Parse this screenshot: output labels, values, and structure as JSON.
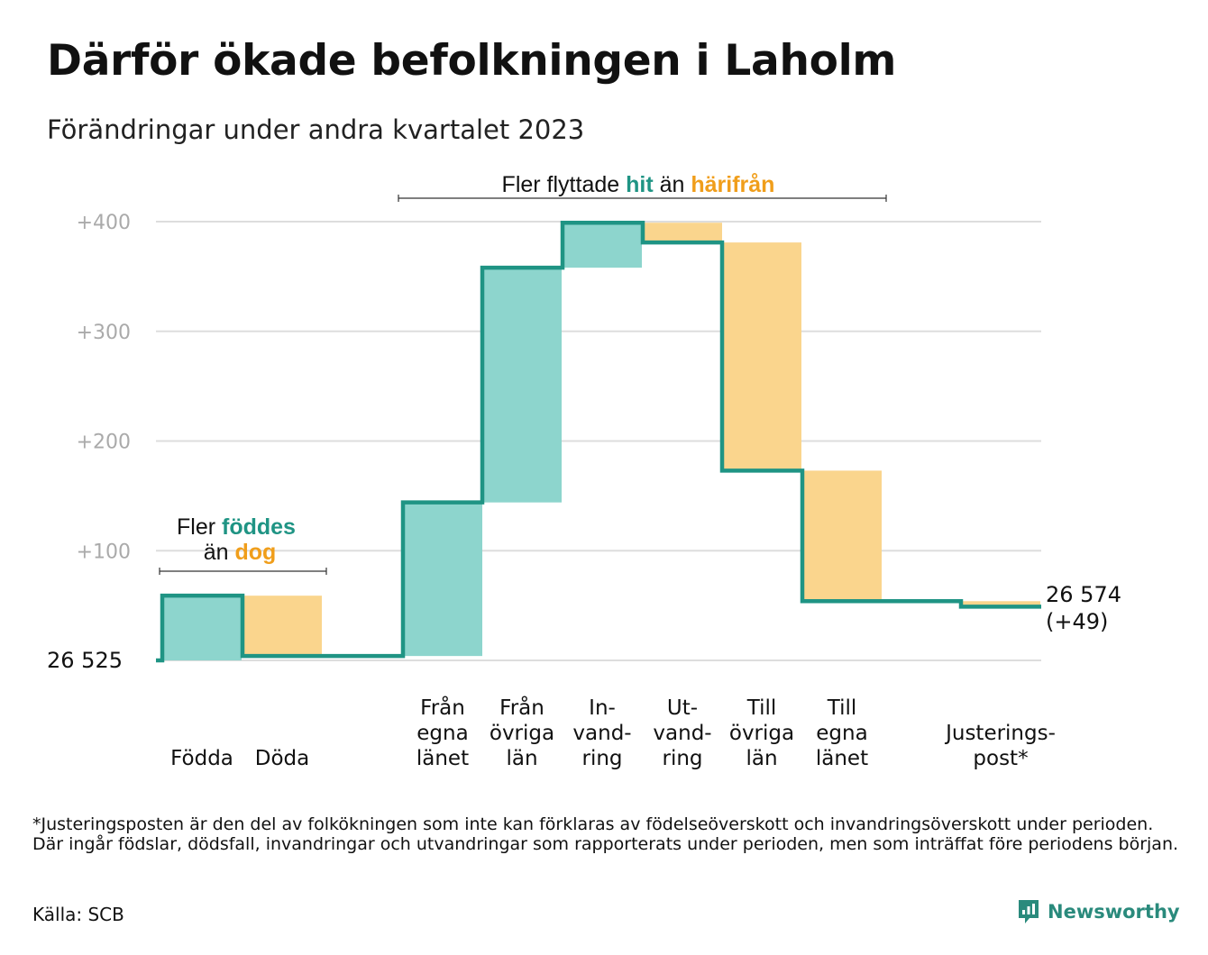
{
  "header": {
    "title": "Därför ökade befolkningen i Laholm",
    "subtitle": "Förändringar under andra kvartalet 2023"
  },
  "colors": {
    "increase": "#8dd5cd",
    "decrease": "#fad58d",
    "line": "#1f9484",
    "teal_text": "#1f9484",
    "orange_text": "#f09e1b",
    "grid": "#dddddd",
    "tick_text": "#aaaaaa"
  },
  "chart_data": {
    "type": "waterfall",
    "start_label": "26 525",
    "start_value": 26525,
    "end_label": "26 574",
    "end_change_label": "(+49)",
    "y_ticks": [
      {
        "value": 100,
        "label": "+100"
      },
      {
        "value": 200,
        "label": "+200"
      },
      {
        "value": 300,
        "label": "+300"
      },
      {
        "value": 400,
        "label": "+400"
      }
    ],
    "ylim": [
      0,
      400
    ],
    "steps": [
      {
        "label": "Födda",
        "change": 59
      },
      {
        "label": "Döda",
        "change": -55
      },
      {
        "label": "Från egna länet",
        "change": 140
      },
      {
        "label": "Från övriga län",
        "change": 214
      },
      {
        "label": "In-vandring",
        "change": 41
      },
      {
        "label": "Ut-vandring",
        "change": -18
      },
      {
        "label": "Till övriga län",
        "change": -208
      },
      {
        "label": "Till egna länet",
        "change": -119
      },
      {
        "label": "Justerings-post*",
        "change": -5
      }
    ],
    "category_labels": [
      [
        "Födda"
      ],
      [
        "Döda"
      ],
      [
        "Från",
        "egna",
        "länet"
      ],
      [
        "Från",
        "övriga",
        "län"
      ],
      [
        "In-",
        "vand-",
        "ring"
      ],
      [
        "Ut-",
        "vand-",
        "ring"
      ],
      [
        "Till",
        "övriga",
        "län"
      ],
      [
        "Till",
        "egna",
        "länet"
      ],
      [
        "Justerings-",
        "post*"
      ]
    ],
    "annotations": {
      "births": {
        "prefix": "Fler ",
        "highlight1": "föddes",
        "middle": "än ",
        "highlight2": "dog"
      },
      "migration": {
        "prefix": "Fler flyttade ",
        "highlight1": "hit",
        "middle": " än ",
        "highlight2": "härifrån"
      }
    }
  },
  "footer": {
    "footnote": "*Justeringsposten är den del av folkökningen som inte kan förklaras av födelseöverskott och invandringsöverskott under perioden. Där ingår födslar, dödsfall, invandringar och utvandringar som rapporterats under perioden, men som inträffat före periodens början.",
    "source": "Källa: SCB",
    "brand": "Newsworthy"
  }
}
